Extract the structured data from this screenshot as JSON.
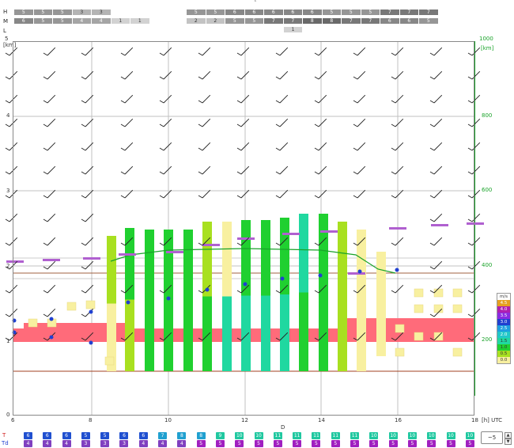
{
  "top_chevron": "˄",
  "rows": {
    "H": "H",
    "M": "M",
    "L": "L"
  },
  "H_left": [
    "5",
    "5",
    "5",
    "3",
    "3"
  ],
  "H_right": [
    "5",
    "5",
    "6",
    "6",
    "6",
    "6",
    "6",
    "5",
    "5",
    "5",
    "7",
    "7",
    "7"
  ],
  "M_left": [
    "6",
    "5",
    "5",
    "4",
    "4",
    "1",
    "1"
  ],
  "M_right": [
    "2",
    "2",
    "5",
    "5",
    "7",
    "7",
    "8",
    "8",
    "7",
    "7",
    "6",
    "6",
    "5"
  ],
  "L_right": [
    "1"
  ],
  "left_axis": {
    "unit": "[km]",
    "ticks": [
      "5",
      "4",
      "3",
      "2",
      "1",
      "0"
    ]
  },
  "right_axis": {
    "unit": "[km]",
    "ticks": [
      "1000",
      "800",
      "600",
      "400",
      "200"
    ]
  },
  "x_axis": {
    "ticks": [
      "6",
      "8",
      "10",
      "12",
      "14",
      "16",
      "18"
    ],
    "unit": "[h] UTC"
  },
  "d_label": "D",
  "legend": {
    "title": "m/s",
    "items": [
      {
        "label": "4.5",
        "color": "#e6a020"
      },
      {
        "label": "4.0",
        "color": "#b01fb0"
      },
      {
        "label": "3.5",
        "color": "#8a2be2"
      },
      {
        "label": "3.0",
        "color": "#2040d0"
      },
      {
        "label": "2.5",
        "color": "#1ea0e0"
      },
      {
        "label": "2.0",
        "color": "#22c8c8"
      },
      {
        "label": "1.5",
        "color": "#20d8a0"
      },
      {
        "label": "1.0",
        "color": "#20d030"
      },
      {
        "label": "0.5",
        "color": "#a8e020"
      },
      {
        "label": "0.0",
        "color": "#f8f0a0"
      }
    ]
  },
  "T": {
    "label": "T",
    "values": [
      "6",
      "6",
      "6",
      "5",
      "5",
      "6",
      "6",
      "7",
      "8",
      "8",
      "9",
      "10",
      "10",
      "11",
      "11",
      "11",
      "11",
      "11",
      "10",
      "10",
      "10",
      "10",
      "10",
      "10"
    ]
  },
  "Td": {
    "label": "Td",
    "values": [
      "4",
      "4",
      "4",
      "3",
      "3",
      "3",
      "4",
      "4",
      "4",
      "5",
      "5",
      "5",
      "5",
      "5",
      "5",
      "5",
      "5",
      "5",
      "5",
      "5",
      "5",
      "5",
      "5",
      "5"
    ]
  },
  "spinner": {
    "value": "~5",
    "up": "▲",
    "down": "▼"
  },
  "colors": {
    "grid": "#c8c8c8",
    "green_axis": "#1aa32a",
    "band": "#ff6b7a",
    "line": "#1aa32a"
  }
}
